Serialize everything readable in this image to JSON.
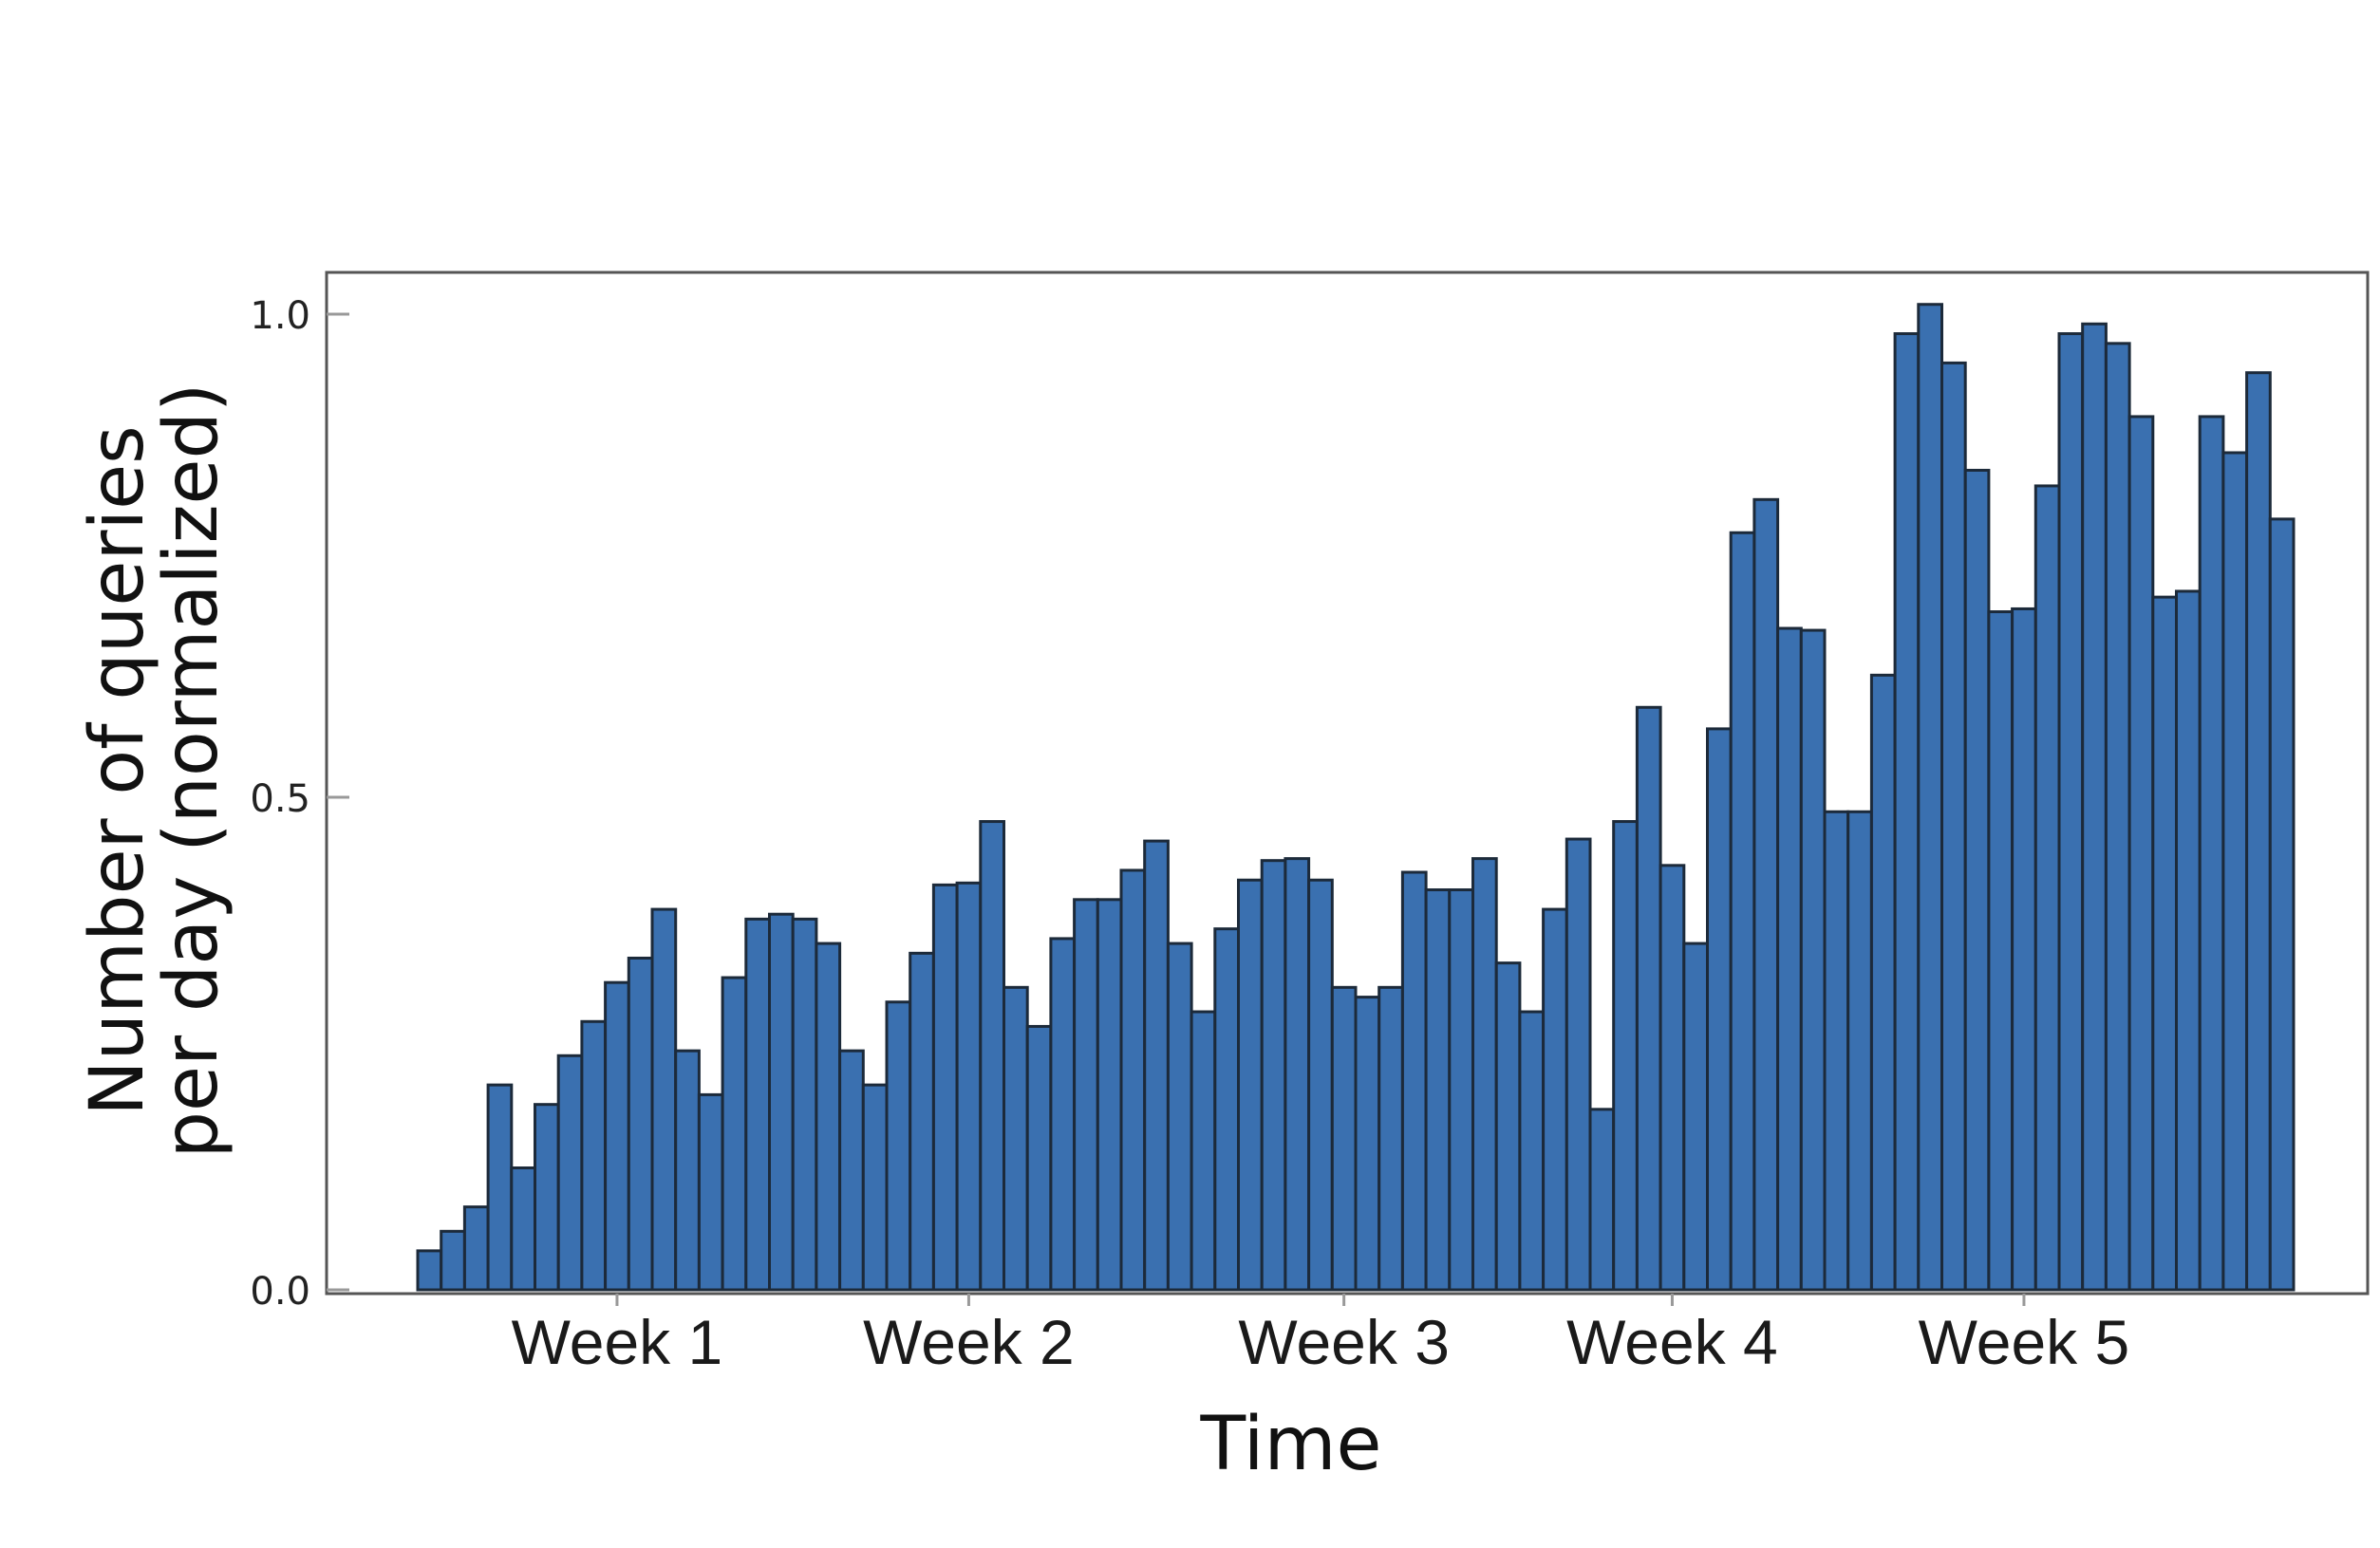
{
  "chart_data": {
    "type": "bar",
    "xlabel": "Time",
    "ylabel": [
      "Number of queries",
      "per day (normalized)"
    ],
    "ylim": [
      0.0,
      1.05
    ],
    "yticks": [
      {
        "value": 0.0,
        "label": "0.0"
      },
      {
        "value": 0.5,
        "label": "0.5"
      },
      {
        "value": 1.0,
        "label": "1.0"
      }
    ],
    "xticks": [
      {
        "day": 8.5,
        "label": "Week 1"
      },
      {
        "day": 23.5,
        "label": "Week 2"
      },
      {
        "day": 39.5,
        "label": "Week 3"
      },
      {
        "day": 53.5,
        "label": "Week 4"
      },
      {
        "day": 68.5,
        "label": "Week 5"
      }
    ],
    "grid": false,
    "legend": "none",
    "bar_color": "#3a70b0",
    "bar_edge_color": "#1c2a3a",
    "values": [
      0.04,
      0.06,
      0.085,
      0.21,
      0.125,
      0.19,
      0.24,
      0.275,
      0.315,
      0.34,
      0.39,
      0.245,
      0.2,
      0.32,
      0.38,
      0.385,
      0.38,
      0.355,
      0.245,
      0.21,
      0.295,
      0.345,
      0.415,
      0.417,
      0.48,
      0.31,
      0.27,
      0.36,
      0.4,
      0.4,
      0.43,
      0.46,
      0.355,
      0.285,
      0.37,
      0.42,
      0.44,
      0.442,
      0.42,
      0.31,
      0.3,
      0.31,
      0.428,
      0.41,
      0.41,
      0.442,
      0.335,
      0.285,
      0.39,
      0.462,
      0.185,
      0.48,
      0.597,
      0.435,
      0.355,
      0.575,
      0.776,
      0.81,
      0.678,
      0.676,
      0.49,
      0.49,
      0.63,
      0.98,
      1.01,
      0.95,
      0.84,
      0.695,
      0.698,
      0.824,
      0.98,
      0.99,
      0.97,
      0.895,
      0.71,
      0.716,
      0.895,
      0.858,
      0.94,
      0.79
    ]
  }
}
